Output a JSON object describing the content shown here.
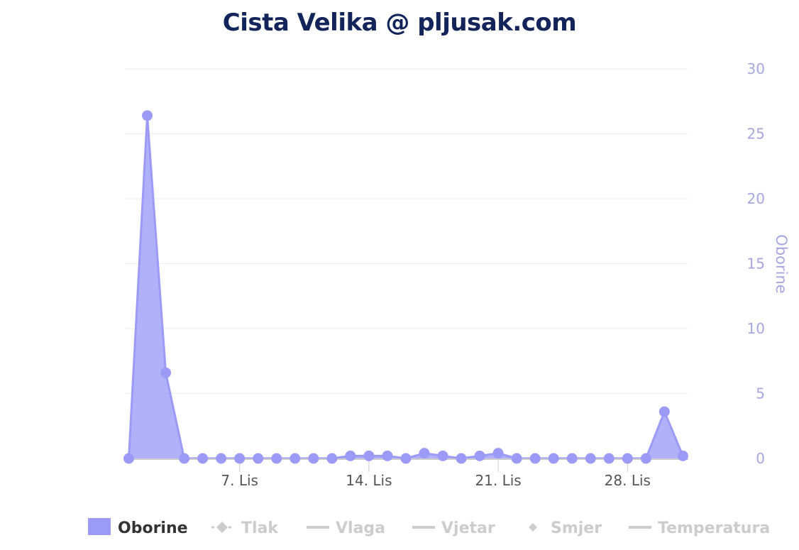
{
  "chart_data": {
    "type": "area",
    "title": "Cista Velika @ pljusak.com",
    "ylabel": "Oborine",
    "ylim": [
      0,
      30
    ],
    "y_ticks": [
      0,
      5,
      10,
      15,
      20,
      25,
      30
    ],
    "x_range": [
      "2024-11-01",
      "2024-11-30"
    ],
    "x_ticks": [
      {
        "x": "2024-11-07",
        "label": "7. Lis"
      },
      {
        "x": "2024-11-14",
        "label": "14. Lis"
      },
      {
        "x": "2024-11-21",
        "label": "21. Lis"
      },
      {
        "x": "2024-11-28",
        "label": "28. Lis"
      }
    ],
    "grid": true,
    "legend_placement": "bottom",
    "series": [
      {
        "name": "Oborine",
        "color": "#9b9bf7",
        "x": [
          "2024-11-01",
          "2024-11-02",
          "2024-11-03",
          "2024-11-04",
          "2024-11-05",
          "2024-11-06",
          "2024-11-07",
          "2024-11-08",
          "2024-11-09",
          "2024-11-10",
          "2024-11-11",
          "2024-11-12",
          "2024-11-13",
          "2024-11-14",
          "2024-11-15",
          "2024-11-16",
          "2024-11-17",
          "2024-11-18",
          "2024-11-19",
          "2024-11-20",
          "2024-11-21",
          "2024-11-22",
          "2024-11-23",
          "2024-11-24",
          "2024-11-25",
          "2024-11-26",
          "2024-11-27",
          "2024-11-28",
          "2024-11-29",
          "2024-11-30",
          "2024-12-01"
        ],
        "values": [
          0,
          26.4,
          6.6,
          0,
          0,
          0,
          0,
          0,
          0,
          0,
          0,
          0,
          0.2,
          0.2,
          0.2,
          0,
          0.4,
          0.2,
          0,
          0.2,
          0.4,
          0,
          0,
          0,
          0,
          0,
          0,
          0,
          0,
          3.6,
          0.2
        ]
      }
    ],
    "legend": [
      {
        "name": "Oborine",
        "active": true,
        "symbol": "square"
      },
      {
        "name": "Tlak",
        "active": false,
        "symbol": "dash-diamond"
      },
      {
        "name": "Vlaga",
        "active": false,
        "symbol": "line"
      },
      {
        "name": "Vjetar",
        "active": false,
        "symbol": "line"
      },
      {
        "name": "Smjer",
        "active": false,
        "symbol": "diamond"
      },
      {
        "name": "Temperatura",
        "active": false,
        "symbol": "line"
      }
    ],
    "colors": {
      "active_text": "#333333",
      "inactive": "#cccccc",
      "axis_text": "#a6a6e0",
      "title": "#13245a"
    }
  }
}
